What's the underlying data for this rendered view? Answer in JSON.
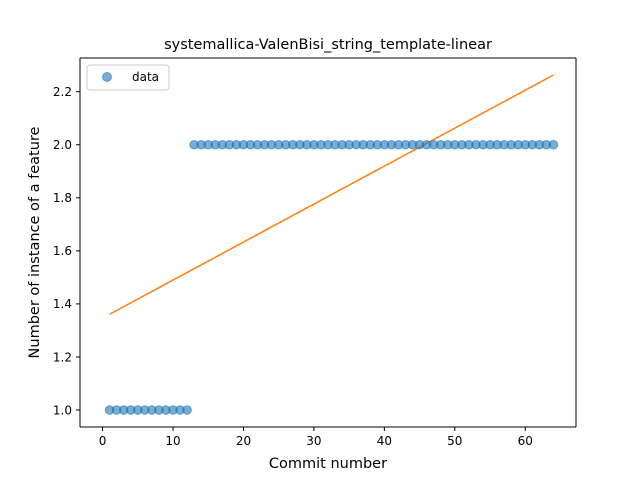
{
  "chart_data": {
    "type": "scatter",
    "title": "systemallica-ValenBisi_string_template-linear",
    "xlabel": "Commit number",
    "ylabel": "Number of instance of a feature",
    "xlim": [
      -3.2,
      67.2
    ],
    "ylim": [
      0.936,
      2.327
    ],
    "xticks": [
      0,
      10,
      20,
      30,
      40,
      50,
      60
    ],
    "yticks": [
      1.0,
      1.2,
      1.4,
      1.6,
      1.8,
      2.0,
      2.2
    ],
    "tick_labels": {
      "x": [
        "0",
        "10",
        "20",
        "30",
        "40",
        "50",
        "60"
      ],
      "y": [
        "1.0",
        "1.2",
        "1.4",
        "1.6",
        "1.8",
        "2.0",
        "2.2"
      ]
    },
    "grid": false,
    "legend": {
      "position": "upper-left",
      "entries": [
        "data"
      ]
    },
    "series": [
      {
        "name": "data",
        "kind": "scatter",
        "color": "#1f77b4",
        "x": [
          1,
          2,
          3,
          4,
          5,
          6,
          7,
          8,
          9,
          10,
          11,
          12,
          13,
          14,
          15,
          16,
          17,
          18,
          19,
          20,
          21,
          22,
          23,
          24,
          25,
          26,
          27,
          28,
          29,
          30,
          31,
          32,
          33,
          34,
          35,
          36,
          37,
          38,
          39,
          40,
          41,
          42,
          43,
          44,
          45,
          46,
          47,
          48,
          49,
          50,
          51,
          52,
          53,
          54,
          55,
          56,
          57,
          58,
          59,
          60,
          61,
          62,
          63,
          64
        ],
        "y": [
          1,
          1,
          1,
          1,
          1,
          1,
          1,
          1,
          1,
          1,
          1,
          1,
          2,
          2,
          2,
          2,
          2,
          2,
          2,
          2,
          2,
          2,
          2,
          2,
          2,
          2,
          2,
          2,
          2,
          2,
          2,
          2,
          2,
          2,
          2,
          2,
          2,
          2,
          2,
          2,
          2,
          2,
          2,
          2,
          2,
          2,
          2,
          2,
          2,
          2,
          2,
          2,
          2,
          2,
          2,
          2,
          2,
          2,
          2,
          2,
          2,
          2,
          2,
          2
        ]
      },
      {
        "kind": "line",
        "color": "#ff7f0e",
        "x": [
          1,
          64
        ],
        "y": [
          1.361,
          2.263
        ]
      }
    ]
  }
}
